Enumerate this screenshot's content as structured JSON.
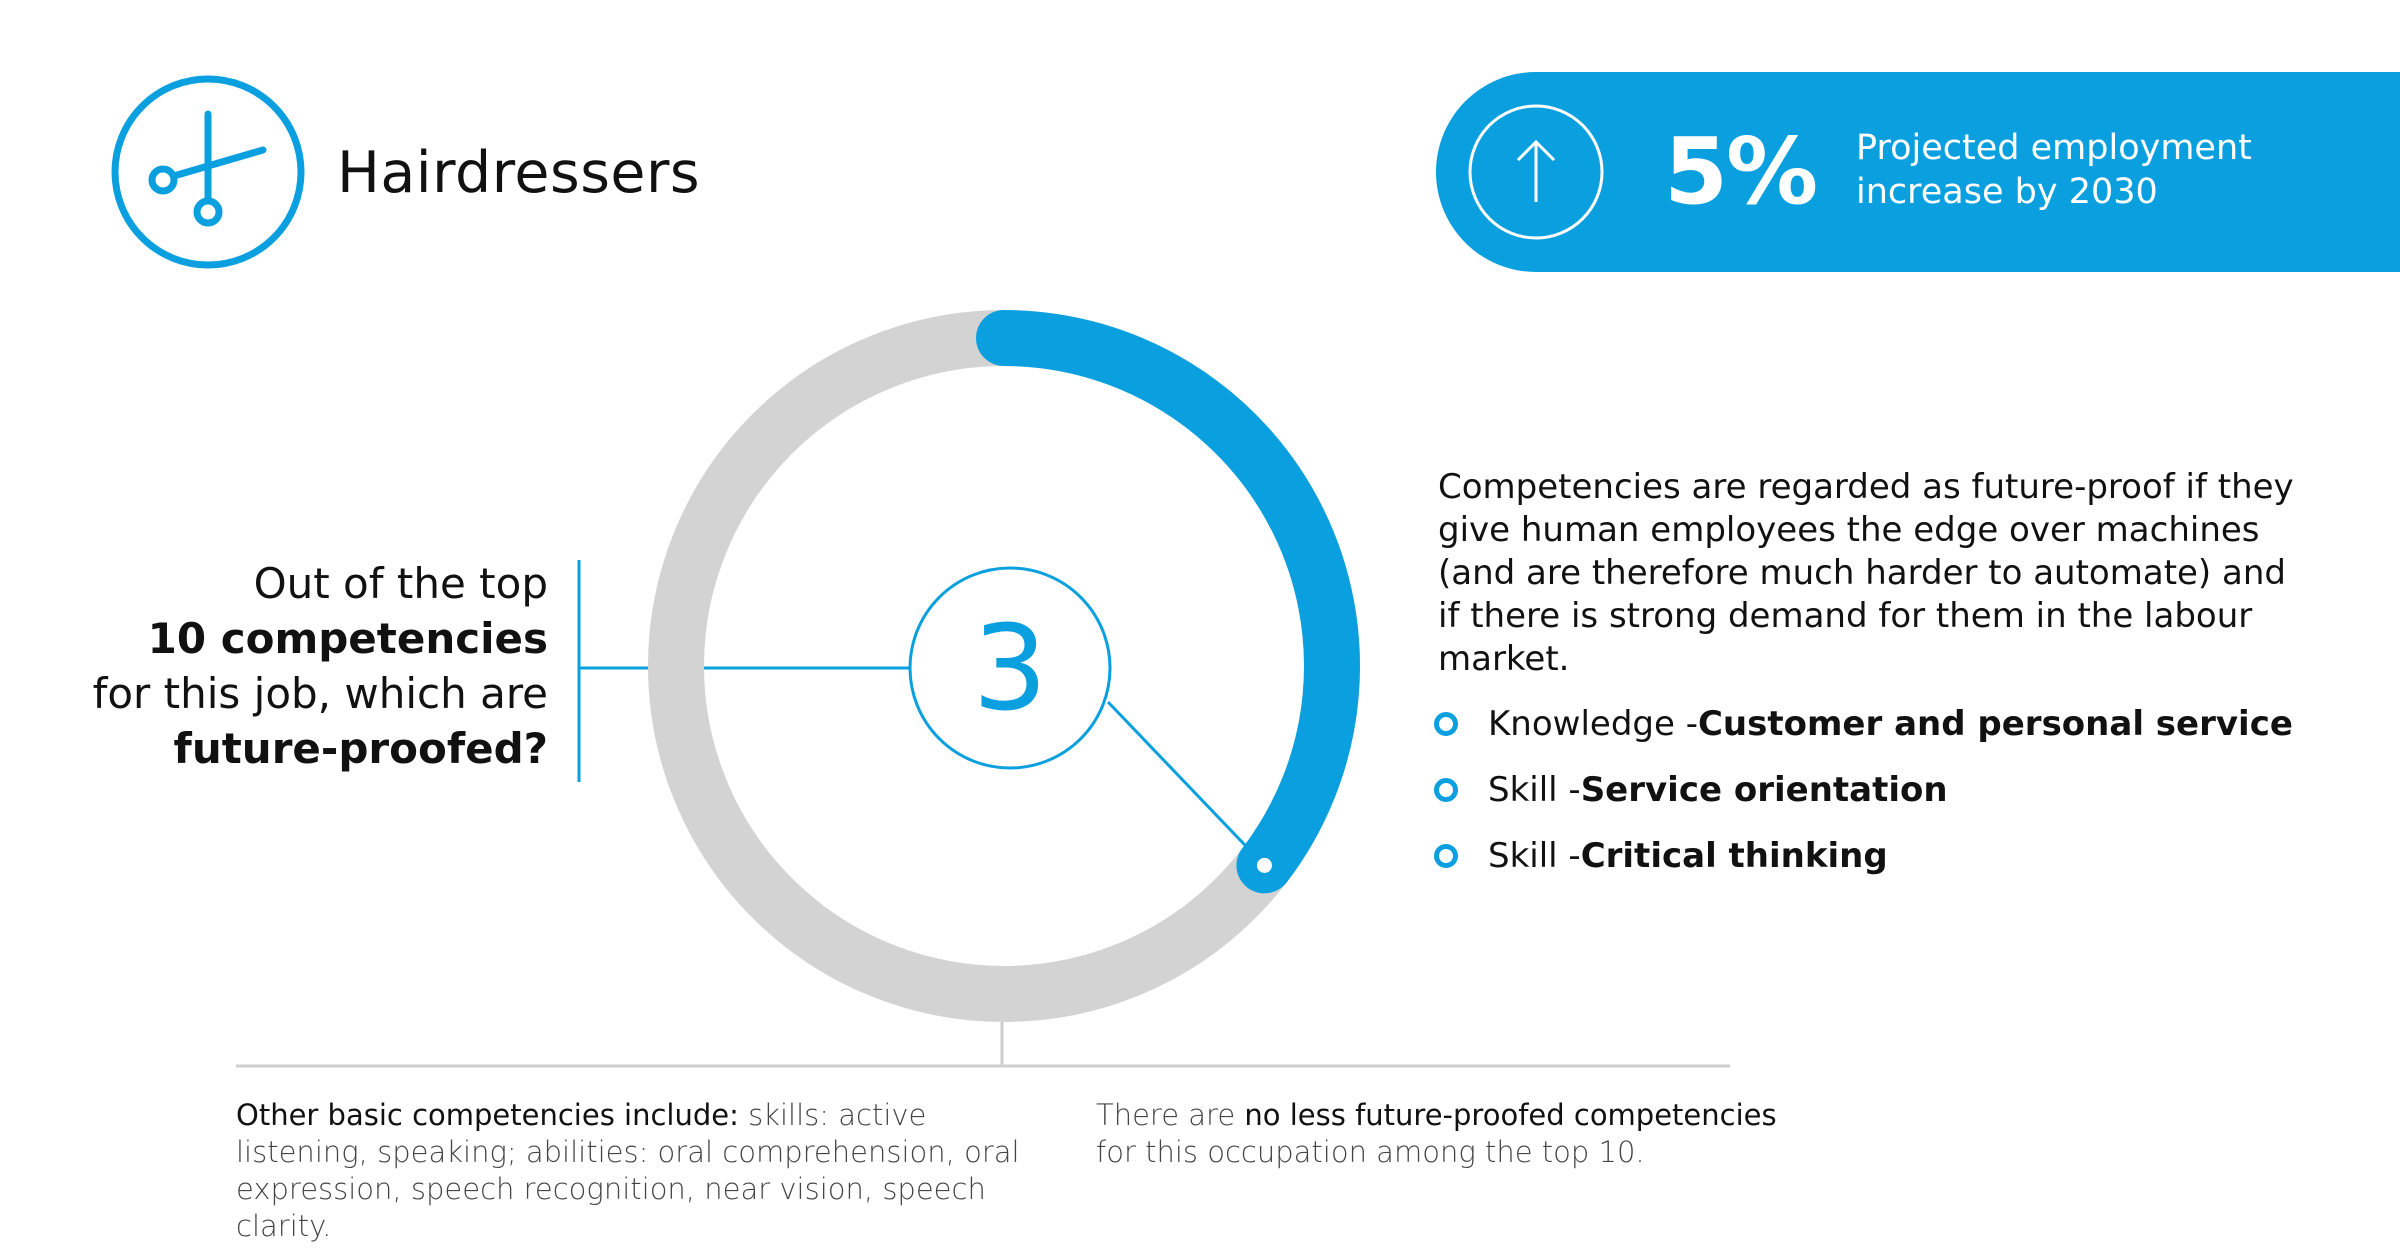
{
  "header": {
    "occupation": "Hairdressers",
    "icon": "scissors-icon"
  },
  "projection": {
    "value": "5%",
    "label": "Projected employment increase by 2030",
    "icon": "arrow-up-icon",
    "color": "#0aa0df"
  },
  "question": {
    "line1": "Out of the top",
    "line2": "10 competencies",
    "line3": "for this job, which are",
    "line4": "future-proofed?"
  },
  "gauge": {
    "value": "3",
    "fraction": 0.3,
    "track_color": "#d3d3d3",
    "fill_color": "#0aa0df"
  },
  "description": "Competencies are regarded as future-proof if they give human employees the edge over machines (and are therefore much harder to automate) and if there is strong demand for them in the labour market.",
  "competencies": [
    {
      "type": "Knowledge - ",
      "name": "Customer and personal service"
    },
    {
      "type": "Skill - ",
      "name": "Service orientation"
    },
    {
      "type": "Skill - ",
      "name": "Critical thinking"
    }
  ],
  "notes": {
    "left_prefix": "Other basic competencies include:",
    "left_text": " skills: active listening, speaking; abilities: oral comprehension, oral expression, speech recognition, near vision, speech clarity.",
    "right_prefix": "There are ",
    "right_bold": "no less future-proofed competencies",
    "right_suffix": " for this occupation among the top 10."
  }
}
